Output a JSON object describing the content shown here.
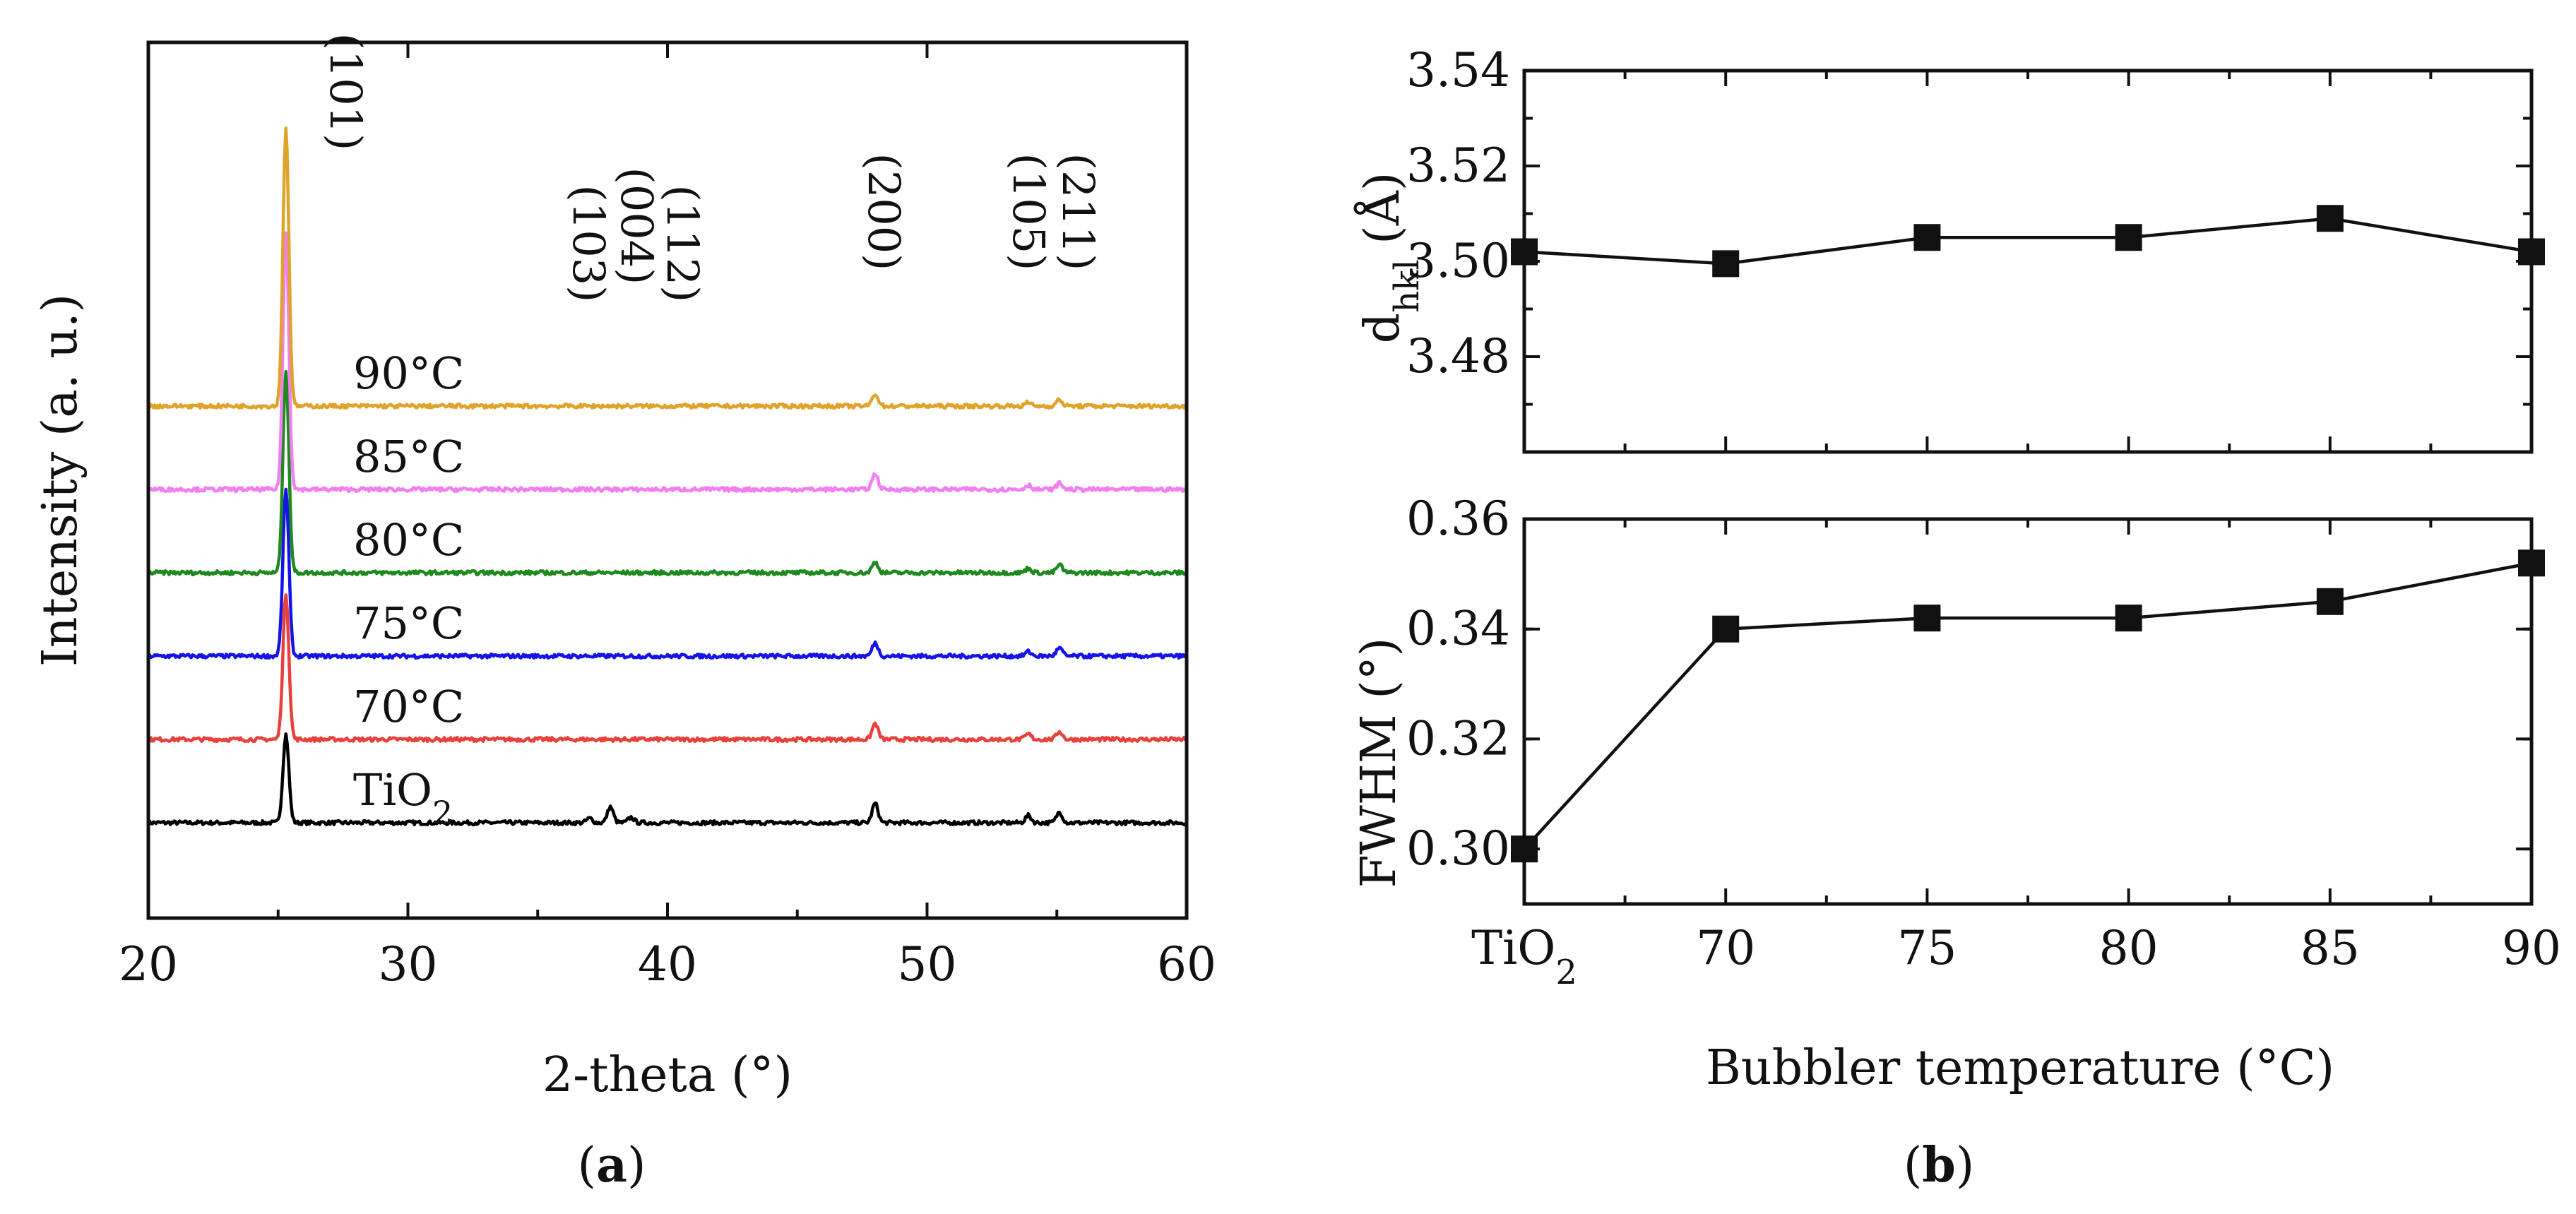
{
  "chart_data": [
    {
      "panel": "a",
      "type": "line",
      "panel_label": "a",
      "xlabel": "2-theta (°)",
      "ylabel": "Intensity (a. u.)",
      "xlim": [
        20,
        60
      ],
      "xticks": [
        20,
        30,
        40,
        50,
        60
      ],
      "peak_labels": [
        {
          "hkl": "(101)",
          "two_theta": 25.3
        },
        {
          "hkl": "(103)",
          "two_theta": 36.9
        },
        {
          "hkl": "(004)",
          "two_theta": 37.8
        },
        {
          "hkl": "(112)",
          "two_theta": 38.6
        },
        {
          "hkl": "(200)",
          "two_theta": 48.0
        },
        {
          "hkl": "(105)",
          "two_theta": 53.9
        },
        {
          "hkl": "(211)",
          "two_theta": 55.1
        }
      ],
      "series": [
        {
          "name": "TiO2",
          "label_main": "TiO",
          "label_sub": "2",
          "color": "#000000",
          "baseline": 0.0,
          "peaks": [
            [
              25.3,
              1.0
            ],
            [
              37.0,
              0.05
            ],
            [
              37.8,
              0.18
            ],
            [
              38.6,
              0.06
            ],
            [
              48.0,
              0.22
            ],
            [
              53.9,
              0.08
            ],
            [
              55.1,
              0.12
            ]
          ]
        },
        {
          "name": "70°C",
          "label_main": "70°C",
          "label_sub": "",
          "color": "#e8413c",
          "baseline": 1.0,
          "peaks": [
            [
              25.3,
              1.65
            ],
            [
              48.0,
              0.18
            ],
            [
              53.9,
              0.06
            ],
            [
              55.1,
              0.09
            ]
          ]
        },
        {
          "name": "75°C",
          "label_main": "75°C",
          "label_sub": "",
          "color": "#1414e6",
          "baseline": 2.0,
          "peaks": [
            [
              25.3,
              1.9
            ],
            [
              48.0,
              0.15
            ],
            [
              53.9,
              0.05
            ],
            [
              55.1,
              0.09
            ]
          ]
        },
        {
          "name": "80°C",
          "label_main": "80°C",
          "label_sub": "",
          "color": "#1e8a1e",
          "baseline": 3.0,
          "peaks": [
            [
              25.3,
              2.3
            ],
            [
              48.0,
              0.12
            ],
            [
              53.9,
              0.05
            ],
            [
              55.1,
              0.09
            ]
          ]
        },
        {
          "name": "85°C",
          "label_main": "85°C",
          "label_sub": "",
          "color": "#f27ff2",
          "baseline": 4.0,
          "peaks": [
            [
              25.3,
              2.9
            ],
            [
              48.0,
              0.18
            ],
            [
              53.9,
              0.05
            ],
            [
              55.1,
              0.07
            ]
          ]
        },
        {
          "name": "90°C",
          "label_main": "90°C",
          "label_sub": "",
          "color": "#e0a32a",
          "baseline": 5.0,
          "peaks": [
            [
              25.3,
              3.15
            ],
            [
              48.0,
              0.14
            ],
            [
              53.9,
              0.04
            ],
            [
              55.1,
              0.07
            ]
          ]
        }
      ]
    },
    {
      "panel": "b-top",
      "type": "line",
      "xlabel": "",
      "ylabel_main": "d",
      "ylabel_sub": "hkl",
      "ylabel_unit": " (Å)",
      "categories": [
        "TiO2",
        "70",
        "75",
        "80",
        "85",
        "90"
      ],
      "values": [
        3.502,
        3.4995,
        3.505,
        3.505,
        3.509,
        3.502
      ],
      "ylim": [
        3.46,
        3.54
      ],
      "yticks": [
        3.48,
        3.5,
        3.52,
        3.54
      ],
      "ytick_labels": [
        "3.48",
        "3.50",
        "3.52",
        "3.54"
      ]
    },
    {
      "panel": "b-bottom",
      "type": "line",
      "panel_label": "b",
      "xlabel": "Bubbler temperature (°C)",
      "ylabel": "FWHM (°)",
      "categories": [
        "TiO2",
        "70",
        "75",
        "80",
        "85",
        "90"
      ],
      "category_labels": [
        {
          "main": "TiO",
          "sub": "2"
        },
        {
          "main": "70",
          "sub": ""
        },
        {
          "main": "75",
          "sub": ""
        },
        {
          "main": "80",
          "sub": ""
        },
        {
          "main": "85",
          "sub": ""
        },
        {
          "main": "90",
          "sub": ""
        }
      ],
      "values": [
        0.3,
        0.34,
        0.342,
        0.342,
        0.345,
        0.352
      ],
      "ylim": [
        0.29,
        0.36
      ],
      "yticks": [
        0.3,
        0.32,
        0.34,
        0.36
      ],
      "ytick_labels": [
        "0.30",
        "0.32",
        "0.34",
        "0.36"
      ]
    }
  ]
}
